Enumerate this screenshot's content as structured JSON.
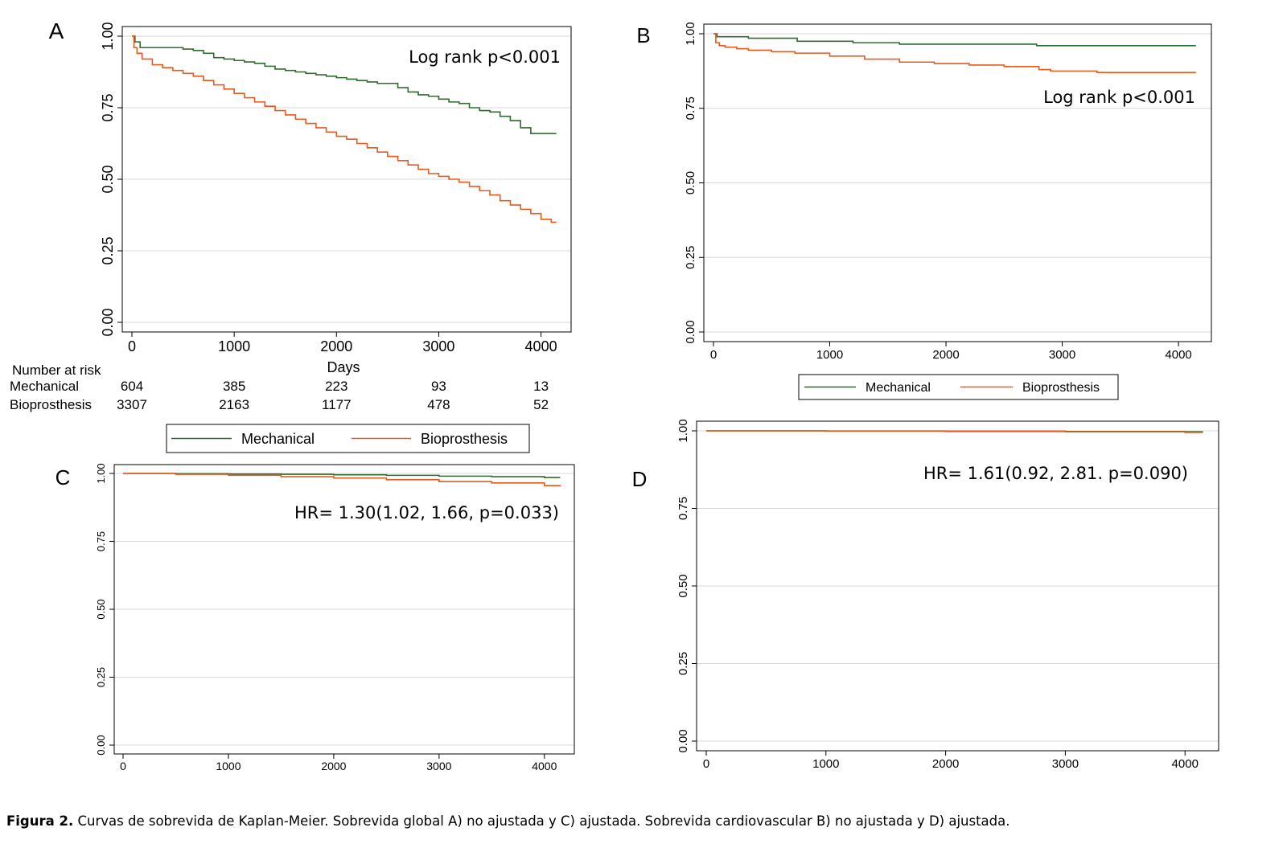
{
  "figure": {
    "caption_label": "Figura 2.",
    "caption_text": " Curvas de sobrevida de Kaplan-Meier. Sobrevida global A) no ajustada y C) ajustada. Sobrevida cardiovascular B) no ajustada y D) ajustada."
  },
  "colors": {
    "mechanical": "#2e6b2e",
    "bioprosthesis": "#e8591c",
    "grid": "#d8d8d8",
    "axis": "#000000"
  },
  "chart_data": [
    {
      "panel": "A",
      "type": "line",
      "annotation": "Log rank p<0.001",
      "xlabel": "Days",
      "ylabel": "",
      "xlim": [
        0,
        4200
      ],
      "ylim": [
        0,
        1
      ],
      "xticks": [
        0,
        1000,
        2000,
        3000,
        4000
      ],
      "yticks": [
        0.0,
        0.25,
        0.5,
        0.75,
        1.0
      ],
      "ytick_labels": [
        "0.00",
        "0.25",
        "0.50",
        "0.75",
        "1.00"
      ],
      "grid": true,
      "legend_position": "bottom",
      "series": [
        {
          "name": "Mechanical",
          "x": [
            0,
            30,
            80,
            200,
            400,
            500,
            600,
            700,
            800,
            900,
            1000,
            1100,
            1200,
            1300,
            1400,
            1500,
            1600,
            1700,
            1800,
            1900,
            2000,
            2100,
            2200,
            2300,
            2400,
            2500,
            2600,
            2700,
            2800,
            2900,
            3000,
            3100,
            3200,
            3300,
            3400,
            3500,
            3600,
            3700,
            3800,
            3900,
            4000,
            4150
          ],
          "y": [
            1.0,
            0.98,
            0.96,
            0.96,
            0.96,
            0.955,
            0.95,
            0.94,
            0.925,
            0.92,
            0.915,
            0.91,
            0.905,
            0.895,
            0.885,
            0.88,
            0.875,
            0.87,
            0.865,
            0.86,
            0.855,
            0.85,
            0.845,
            0.84,
            0.835,
            0.835,
            0.82,
            0.805,
            0.795,
            0.79,
            0.78,
            0.77,
            0.765,
            0.75,
            0.74,
            0.735,
            0.72,
            0.705,
            0.68,
            0.66,
            0.66,
            0.66
          ]
        },
        {
          "name": "Bioprosthesis",
          "x": [
            0,
            20,
            50,
            100,
            200,
            300,
            400,
            500,
            600,
            700,
            800,
            900,
            1000,
            1100,
            1200,
            1300,
            1400,
            1500,
            1600,
            1700,
            1800,
            1900,
            2000,
            2100,
            2200,
            2300,
            2400,
            2500,
            2600,
            2700,
            2800,
            2900,
            3000,
            3100,
            3200,
            3300,
            3400,
            3500,
            3600,
            3700,
            3800,
            3900,
            4000,
            4100,
            4150
          ],
          "y": [
            1.0,
            0.96,
            0.94,
            0.92,
            0.9,
            0.89,
            0.88,
            0.87,
            0.86,
            0.845,
            0.83,
            0.815,
            0.8,
            0.785,
            0.77,
            0.755,
            0.74,
            0.725,
            0.71,
            0.695,
            0.68,
            0.665,
            0.65,
            0.64,
            0.625,
            0.61,
            0.595,
            0.58,
            0.565,
            0.55,
            0.535,
            0.52,
            0.51,
            0.5,
            0.49,
            0.475,
            0.46,
            0.445,
            0.425,
            0.41,
            0.395,
            0.38,
            0.36,
            0.35,
            0.35
          ]
        }
      ],
      "risk_table": {
        "title": "Number at risk",
        "rows": [
          {
            "name": "Mechanical",
            "values": [
              "604",
              "385",
              "223",
              "93",
              "13"
            ]
          },
          {
            "name": "Bioprosthesis",
            "values": [
              "3307",
              "2163",
              "1177",
              "478",
              "52"
            ]
          }
        ]
      }
    },
    {
      "panel": "B",
      "type": "line",
      "annotation": "Log rank p<0.001",
      "xlabel": "",
      "ylabel": "",
      "xlim": [
        0,
        4200
      ],
      "ylim": [
        0,
        1
      ],
      "xticks": [
        0,
        1000,
        2000,
        3000,
        4000
      ],
      "yticks": [
        0.0,
        0.25,
        0.5,
        0.75,
        1.0
      ],
      "ytick_labels": [
        "0.00",
        "0.25",
        "0.50",
        "0.75",
        "1.00"
      ],
      "grid": true,
      "legend_position": "bottom",
      "series": [
        {
          "name": "Mechanical",
          "x": [
            0,
            30,
            100,
            300,
            500,
            700,
            720,
            1000,
            1200,
            1500,
            1600,
            1700,
            2000,
            2200,
            2500,
            2750,
            2780,
            3000,
            3500,
            4000,
            4150
          ],
          "y": [
            1.0,
            0.99,
            0.99,
            0.985,
            0.985,
            0.985,
            0.975,
            0.975,
            0.97,
            0.97,
            0.965,
            0.965,
            0.965,
            0.965,
            0.965,
            0.965,
            0.96,
            0.96,
            0.96,
            0.96,
            0.96
          ]
        },
        {
          "name": "Bioprosthesis",
          "x": [
            0,
            20,
            50,
            100,
            200,
            300,
            500,
            700,
            1000,
            1300,
            1600,
            1900,
            2200,
            2500,
            2800,
            2900,
            3100,
            3300,
            3600,
            4000,
            4150
          ],
          "y": [
            1.0,
            0.97,
            0.96,
            0.955,
            0.95,
            0.945,
            0.94,
            0.935,
            0.925,
            0.915,
            0.905,
            0.9,
            0.895,
            0.89,
            0.88,
            0.875,
            0.875,
            0.87,
            0.87,
            0.87,
            0.87
          ]
        }
      ]
    },
    {
      "panel": "C",
      "type": "line",
      "annotation": "HR= 1.30(1.02, 1.66, p=0.033)",
      "xlabel": "",
      "ylabel": "",
      "xlim": [
        0,
        4200
      ],
      "ylim": [
        0,
        1
      ],
      "xticks": [
        0,
        1000,
        2000,
        3000,
        4000
      ],
      "yticks": [
        0.0,
        0.25,
        0.5,
        0.75,
        1.0
      ],
      "ytick_labels": [
        "0.00",
        "0.25",
        "0.50",
        "0.75",
        "1.00"
      ],
      "grid": true,
      "series": [
        {
          "name": "Mechanical",
          "x": [
            0,
            500,
            1000,
            1500,
            2000,
            2500,
            3000,
            3500,
            4000,
            4150
          ],
          "y": [
            1.0,
            0.999,
            0.998,
            0.997,
            0.995,
            0.993,
            0.99,
            0.988,
            0.985,
            0.985
          ]
        },
        {
          "name": "Bioprosthesis",
          "x": [
            0,
            500,
            1000,
            1500,
            2000,
            2500,
            3000,
            3500,
            4000,
            4150
          ],
          "y": [
            1.0,
            0.997,
            0.993,
            0.988,
            0.983,
            0.977,
            0.97,
            0.965,
            0.955,
            0.953
          ]
        }
      ]
    },
    {
      "panel": "D",
      "type": "line",
      "annotation": "HR= 1.61(0.92, 2.81. p=0.090)",
      "xlabel": "",
      "ylabel": "",
      "xlim": [
        0,
        4200
      ],
      "ylim": [
        0,
        1
      ],
      "xticks": [
        0,
        1000,
        2000,
        3000,
        4000
      ],
      "yticks": [
        0.0,
        0.25,
        0.5,
        0.75,
        1.0
      ],
      "ytick_labels": [
        "0.00",
        "0.25",
        "0.50",
        "0.75",
        "1.00"
      ],
      "grid": true,
      "series": [
        {
          "name": "Mechanical",
          "x": [
            0,
            1000,
            2000,
            3000,
            4000,
            4150
          ],
          "y": [
            1.0,
            0.9995,
            0.999,
            0.998,
            0.997,
            0.997
          ]
        },
        {
          "name": "Bioprosthesis",
          "x": [
            0,
            1000,
            2000,
            3000,
            4000,
            4150
          ],
          "y": [
            1.0,
            0.999,
            0.998,
            0.997,
            0.995,
            0.995
          ]
        }
      ]
    }
  ]
}
